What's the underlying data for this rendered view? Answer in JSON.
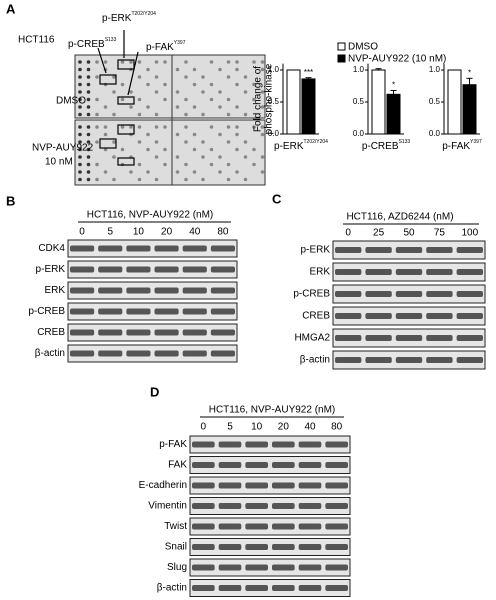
{
  "panel_a": {
    "letter": "A",
    "cell_line": "HCT116",
    "targets": [
      {
        "name": "p-ERK",
        "site": "T202/Y204"
      },
      {
        "name": "p-CREB",
        "site": "S133"
      },
      {
        "name": "p-FAK",
        "site": "Y397"
      }
    ],
    "conditions": [
      [
        "DMSO"
      ],
      [
        "NVP-AUY922",
        "10 nM"
      ]
    ]
  },
  "chart_data": [
    {
      "type": "bar",
      "ylabel": [
        "Fold change of",
        "phospho-kinase"
      ],
      "xlabel": {
        "name": "p-ERK",
        "site": "T202/Y204"
      },
      "series": [
        {
          "name": "DMSO",
          "color": "#ffffff",
          "values": [
            1
          ]
        },
        {
          "name": "NVP-AUY922 (10 nM)",
          "color": "#000000",
          "values": [
            0.86
          ],
          "errors": [
            0.02
          ]
        }
      ],
      "annotation": "***",
      "ylim": [
        0,
        1.1
      ],
      "yticks": [
        {
          "value": 0,
          "label": "0.0"
        },
        {
          "value": 0.5,
          "label": "0.5"
        },
        {
          "value": 1,
          "label": "1.0"
        }
      ]
    },
    {
      "type": "bar",
      "xlabel": {
        "name": "p-CREB",
        "site": "S133"
      },
      "series": [
        {
          "color": "#ffffff",
          "values": [
            1
          ],
          "errors": [
            0.02
          ]
        },
        {
          "color": "#000000",
          "values": [
            0.62
          ],
          "errors": [
            0.06
          ]
        }
      ],
      "annotation": "*",
      "ylim": [
        0,
        1.1
      ],
      "yticks": [
        {
          "value": 0,
          "label": "0.0"
        },
        {
          "value": 0.5,
          "label": "0.5"
        },
        {
          "value": 1,
          "label": "1.0"
        }
      ]
    },
    {
      "type": "bar",
      "xlabel": {
        "name": "p-FAK",
        "site": "Y397"
      },
      "series": [
        {
          "color": "#ffffff",
          "values": [
            1
          ]
        },
        {
          "color": "#000000",
          "values": [
            0.77
          ],
          "errors": [
            0.1
          ]
        }
      ],
      "annotation": "*",
      "ylim": [
        0,
        1.1
      ],
      "yticks": [
        {
          "value": 0,
          "label": "0.0"
        },
        {
          "value": 0.5,
          "label": "0.5"
        },
        {
          "value": 1,
          "label": "1.0"
        }
      ]
    }
  ],
  "blots": [
    {
      "letter": "B",
      "title": "HCT116, NVP-AUY922 (nM)",
      "lanes": [
        0,
        5,
        10,
        20,
        40,
        80
      ],
      "rows": [
        "CDK4",
        "p-ERK",
        "ERK",
        "p-CREB",
        "CREB",
        "β-actin"
      ]
    },
    {
      "letter": "C",
      "title": "HCT116, AZD6244 (nM)",
      "lanes": [
        0,
        25,
        50,
        75,
        100
      ],
      "rows": [
        "p-ERK",
        "ERK",
        "p-CREB",
        "CREB",
        "HMGA2",
        "β-actin"
      ]
    },
    {
      "letter": "D",
      "title": "HCT116, NVP-AUY922 (nM)",
      "lanes": [
        0,
        5,
        10,
        20,
        40,
        80
      ],
      "rows": [
        "p-FAK",
        "FAK",
        "E-cadherin",
        "Vimentin",
        "Twist",
        "Snail",
        "Slug",
        "β-actin"
      ]
    }
  ]
}
